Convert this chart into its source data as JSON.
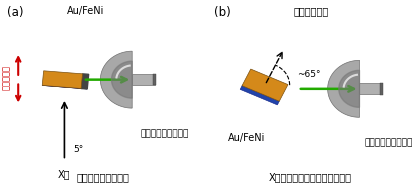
{
  "bg_color": "#ffffff",
  "panel_a": {
    "label": "(a)",
    "title": "Au/FeNi",
    "caption": "上から見た実験配置",
    "analyzer_label": "光電子アナライザー",
    "xray_label": "X線",
    "angle_label": "5°",
    "mag_label": "磁化の向き"
  },
  "panel_b": {
    "label": "(b)",
    "surface_label": "表面垂直方向",
    "title": "Au/FeNi",
    "caption": "X線入射方向から見た実験配置",
    "analyzer_label": "光電子アナライザー",
    "angle_label": "~65°"
  }
}
